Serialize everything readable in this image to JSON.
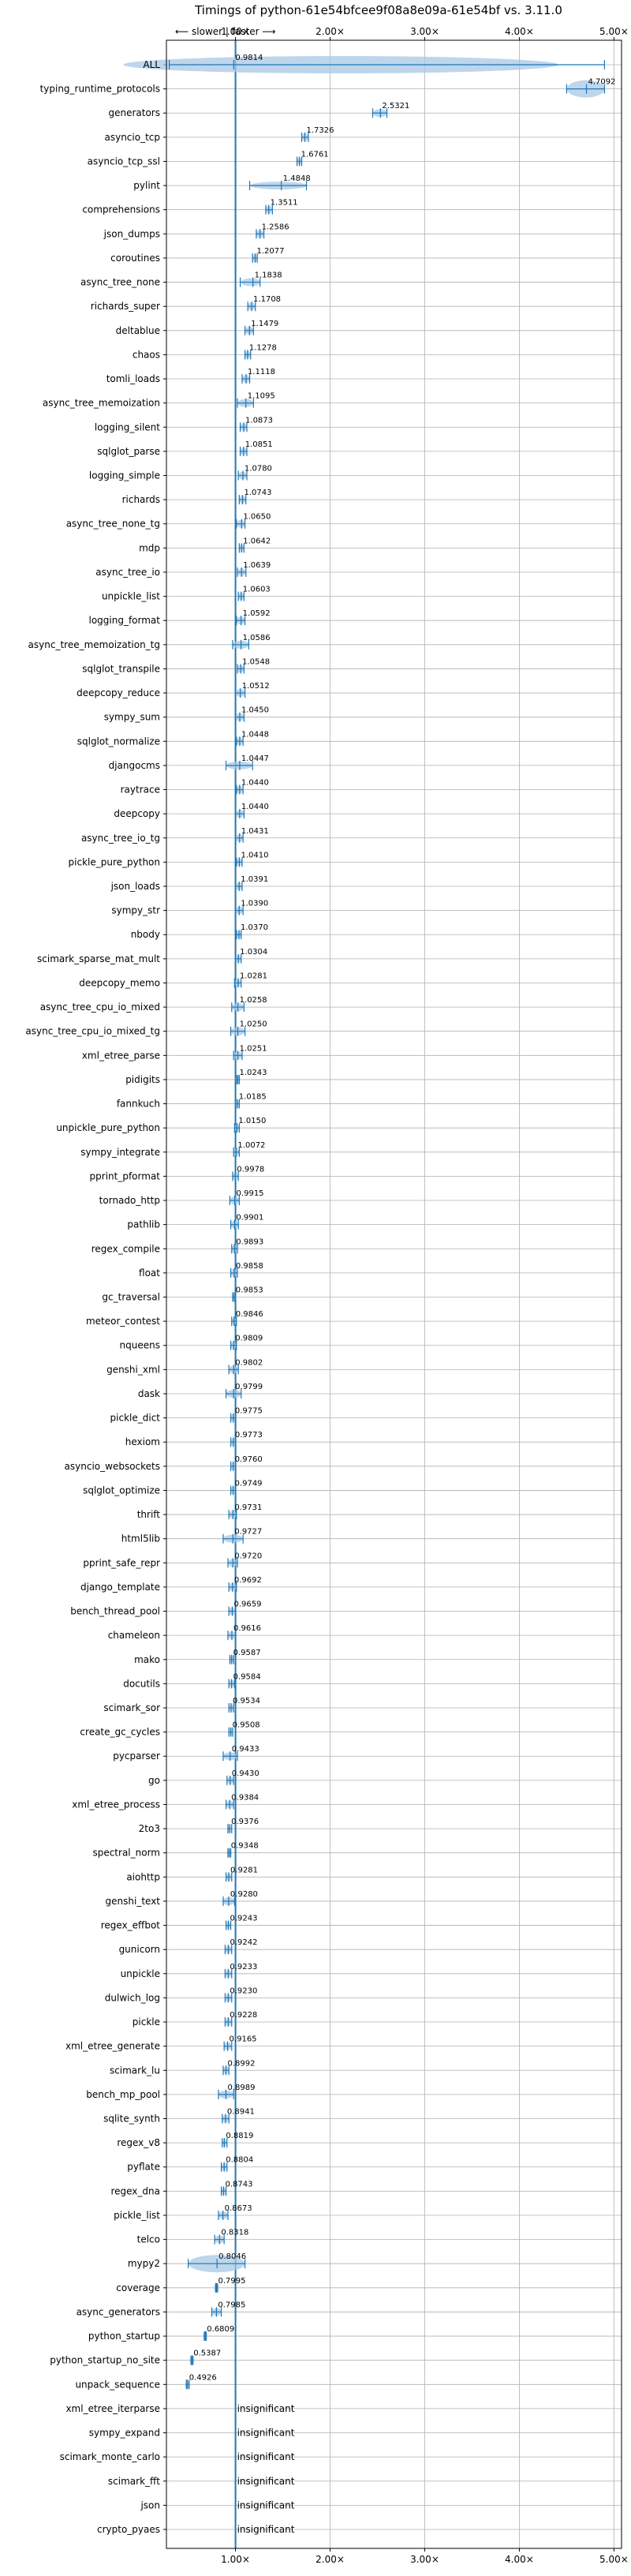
{
  "chart_data": {
    "type": "violin-scatter",
    "title": "Timings of python-61e54bfcee9f08a8e09a-61e54bf vs. 3.11.0",
    "direction_label": "⟵ slower | faster ⟶",
    "xlabel": "",
    "ylabel": "",
    "xlim": [
      0.27,
      5.08
    ],
    "x_ticks": [
      {
        "value": 1.0,
        "label": "1.00×"
      },
      {
        "value": 2.0,
        "label": "2.00×"
      },
      {
        "value": 3.0,
        "label": "3.00×"
      },
      {
        "value": 4.0,
        "label": "4.00×"
      },
      {
        "value": 5.0,
        "label": "5.00×"
      }
    ],
    "baseline": 1.0,
    "grid": true,
    "colors": {
      "violin": "#a8c8e6",
      "line": "#1f77b4",
      "baseline": "#1f77b4",
      "grid": "#b0b0b0"
    },
    "benchmarks": [
      {
        "name": "ALL",
        "value": 0.9814,
        "label": "0.9814",
        "min": 0.3,
        "max": 4.9
      },
      {
        "name": "typing_runtime_protocols",
        "value": 4.7092,
        "label": "4.7092",
        "min": 4.5,
        "max": 4.9
      },
      {
        "name": "generators",
        "value": 2.5321,
        "label": "2.5321",
        "min": 2.45,
        "max": 2.6
      },
      {
        "name": "asyncio_tcp",
        "value": 1.7326,
        "label": "1.7326",
        "min": 1.7,
        "max": 1.77
      },
      {
        "name": "asyncio_tcp_ssl",
        "value": 1.6761,
        "label": "1.6761",
        "min": 1.65,
        "max": 1.7
      },
      {
        "name": "pylint",
        "value": 1.4848,
        "label": "1.4848",
        "min": 1.15,
        "max": 1.75
      },
      {
        "name": "comprehensions",
        "value": 1.3511,
        "label": "1.3511",
        "min": 1.32,
        "max": 1.39
      },
      {
        "name": "json_dumps",
        "value": 1.2586,
        "label": "1.2586",
        "min": 1.22,
        "max": 1.3
      },
      {
        "name": "coroutines",
        "value": 1.2077,
        "label": "1.2077",
        "min": 1.18,
        "max": 1.23
      },
      {
        "name": "async_tree_none",
        "value": 1.1838,
        "label": "1.1838",
        "min": 1.05,
        "max": 1.26
      },
      {
        "name": "richards_super",
        "value": 1.1708,
        "label": "1.1708",
        "min": 1.13,
        "max": 1.21
      },
      {
        "name": "deltablue",
        "value": 1.1479,
        "label": "1.1479",
        "min": 1.1,
        "max": 1.19
      },
      {
        "name": "chaos",
        "value": 1.1278,
        "label": "1.1278",
        "min": 1.1,
        "max": 1.16
      },
      {
        "name": "tomli_loads",
        "value": 1.1118,
        "label": "1.1118",
        "min": 1.07,
        "max": 1.15
      },
      {
        "name": "async_tree_memoization",
        "value": 1.1095,
        "label": "1.1095",
        "min": 1.02,
        "max": 1.19
      },
      {
        "name": "logging_silent",
        "value": 1.0873,
        "label": "1.0873",
        "min": 1.05,
        "max": 1.12
      },
      {
        "name": "sqlglot_parse",
        "value": 1.0851,
        "label": "1.0851",
        "min": 1.05,
        "max": 1.12
      },
      {
        "name": "logging_simple",
        "value": 1.078,
        "label": "1.0780",
        "min": 1.03,
        "max": 1.12
      },
      {
        "name": "richards",
        "value": 1.0743,
        "label": "1.0743",
        "min": 1.04,
        "max": 1.11
      },
      {
        "name": "async_tree_none_tg",
        "value": 1.065,
        "label": "1.0650",
        "min": 1.01,
        "max": 1.1
      },
      {
        "name": "mdp",
        "value": 1.0642,
        "label": "1.0642",
        "min": 1.04,
        "max": 1.09
      },
      {
        "name": "async_tree_io",
        "value": 1.0639,
        "label": "1.0639",
        "min": 1.02,
        "max": 1.11
      },
      {
        "name": "unpickle_list",
        "value": 1.0603,
        "label": "1.0603",
        "min": 1.03,
        "max": 1.09
      },
      {
        "name": "logging_format",
        "value": 1.0592,
        "label": "1.0592",
        "min": 1.01,
        "max": 1.1
      },
      {
        "name": "async_tree_memoization_tg",
        "value": 1.0586,
        "label": "1.0586",
        "min": 0.97,
        "max": 1.14
      },
      {
        "name": "sqlglot_transpile",
        "value": 1.0548,
        "label": "1.0548",
        "min": 1.02,
        "max": 1.09
      },
      {
        "name": "deepcopy_reduce",
        "value": 1.0512,
        "label": "1.0512",
        "min": 1.0,
        "max": 1.1
      },
      {
        "name": "sympy_sum",
        "value": 1.045,
        "label": "1.0450",
        "min": 1.0,
        "max": 1.09
      },
      {
        "name": "sqlglot_normalize",
        "value": 1.0448,
        "label": "1.0448",
        "min": 1.01,
        "max": 1.08
      },
      {
        "name": "djangocms",
        "value": 1.0447,
        "label": "1.0447",
        "min": 0.9,
        "max": 1.18
      },
      {
        "name": "raytrace",
        "value": 1.044,
        "label": "1.0440",
        "min": 1.01,
        "max": 1.08
      },
      {
        "name": "deepcopy",
        "value": 1.044,
        "label": "1.0440",
        "min": 1.0,
        "max": 1.09
      },
      {
        "name": "async_tree_io_tg",
        "value": 1.0431,
        "label": "1.0431",
        "min": 1.0,
        "max": 1.08
      },
      {
        "name": "pickle_pure_python",
        "value": 1.041,
        "label": "1.0410",
        "min": 1.01,
        "max": 1.07
      },
      {
        "name": "json_loads",
        "value": 1.0391,
        "label": "1.0391",
        "min": 1.0,
        "max": 1.07
      },
      {
        "name": "sympy_str",
        "value": 1.039,
        "label": "1.0390",
        "min": 1.0,
        "max": 1.08
      },
      {
        "name": "nbody",
        "value": 1.037,
        "label": "1.0370",
        "min": 1.01,
        "max": 1.06
      },
      {
        "name": "scimark_sparse_mat_mult",
        "value": 1.0304,
        "label": "1.0304",
        "min": 1.0,
        "max": 1.06
      },
      {
        "name": "deepcopy_memo",
        "value": 1.0281,
        "label": "1.0281",
        "min": 0.99,
        "max": 1.06
      },
      {
        "name": "async_tree_cpu_io_mixed",
        "value": 1.0258,
        "label": "1.0258",
        "min": 0.96,
        "max": 1.09
      },
      {
        "name": "async_tree_cpu_io_mixed_tg",
        "value": 1.025,
        "label": "1.0250",
        "min": 0.95,
        "max": 1.1
      },
      {
        "name": "xml_etree_parse",
        "value": 1.0251,
        "label": "1.0251",
        "min": 0.98,
        "max": 1.07
      },
      {
        "name": "pidigits",
        "value": 1.0243,
        "label": "1.0243",
        "min": 1.01,
        "max": 1.04
      },
      {
        "name": "fannkuch",
        "value": 1.0185,
        "label": "1.0185",
        "min": 1.0,
        "max": 1.04
      },
      {
        "name": "unpickle_pure_python",
        "value": 1.015,
        "label": "1.0150",
        "min": 0.99,
        "max": 1.04
      },
      {
        "name": "sympy_integrate",
        "value": 1.0072,
        "label": "1.0072",
        "min": 0.98,
        "max": 1.04
      },
      {
        "name": "pprint_pformat",
        "value": 0.9978,
        "label": "0.9978",
        "min": 0.97,
        "max": 1.03
      },
      {
        "name": "tornado_http",
        "value": 0.9915,
        "label": "0.9915",
        "min": 0.94,
        "max": 1.04
      },
      {
        "name": "pathlib",
        "value": 0.9901,
        "label": "0.9901",
        "min": 0.95,
        "max": 1.03
      },
      {
        "name": "regex_compile",
        "value": 0.9893,
        "label": "0.9893",
        "min": 0.96,
        "max": 1.02
      },
      {
        "name": "float",
        "value": 0.9858,
        "label": "0.9858",
        "min": 0.95,
        "max": 1.02
      },
      {
        "name": "gc_traversal",
        "value": 0.9853,
        "label": "0.9853",
        "min": 0.97,
        "max": 1.0
      },
      {
        "name": "meteor_contest",
        "value": 0.9846,
        "label": "0.9846",
        "min": 0.96,
        "max": 1.01
      },
      {
        "name": "nqueens",
        "value": 0.9809,
        "label": "0.9809",
        "min": 0.95,
        "max": 1.01
      },
      {
        "name": "genshi_xml",
        "value": 0.9802,
        "label": "0.9802",
        "min": 0.93,
        "max": 1.03
      },
      {
        "name": "dask",
        "value": 0.9799,
        "label": "0.9799",
        "min": 0.9,
        "max": 1.06
      },
      {
        "name": "pickle_dict",
        "value": 0.9775,
        "label": "0.9775",
        "min": 0.95,
        "max": 1.0
      },
      {
        "name": "hexiom",
        "value": 0.9773,
        "label": "0.9773",
        "min": 0.95,
        "max": 1.0
      },
      {
        "name": "asyncio_websockets",
        "value": 0.976,
        "label": "0.9760",
        "min": 0.95,
        "max": 1.0
      },
      {
        "name": "sqlglot_optimize",
        "value": 0.9749,
        "label": "0.9749",
        "min": 0.95,
        "max": 1.0
      },
      {
        "name": "thrift",
        "value": 0.9731,
        "label": "0.9731",
        "min": 0.93,
        "max": 1.01
      },
      {
        "name": "html5lib",
        "value": 0.9727,
        "label": "0.9727",
        "min": 0.87,
        "max": 1.08
      },
      {
        "name": "pprint_safe_repr",
        "value": 0.972,
        "label": "0.9720",
        "min": 0.92,
        "max": 1.02
      },
      {
        "name": "django_template",
        "value": 0.9692,
        "label": "0.9692",
        "min": 0.93,
        "max": 1.01
      },
      {
        "name": "bench_thread_pool",
        "value": 0.9659,
        "label": "0.9659",
        "min": 0.93,
        "max": 1.0
      },
      {
        "name": "chameleon",
        "value": 0.9616,
        "label": "0.9616",
        "min": 0.92,
        "max": 1.0
      },
      {
        "name": "mako",
        "value": 0.9587,
        "label": "0.9587",
        "min": 0.94,
        "max": 0.98
      },
      {
        "name": "docutils",
        "value": 0.9584,
        "label": "0.9584",
        "min": 0.93,
        "max": 0.99
      },
      {
        "name": "scimark_sor",
        "value": 0.9534,
        "label": "0.9534",
        "min": 0.93,
        "max": 0.98
      },
      {
        "name": "create_gc_cycles",
        "value": 0.9508,
        "label": "0.9508",
        "min": 0.93,
        "max": 0.97
      },
      {
        "name": "pycparser",
        "value": 0.9433,
        "label": "0.9433",
        "min": 0.87,
        "max": 1.02
      },
      {
        "name": "go",
        "value": 0.943,
        "label": "0.9430",
        "min": 0.91,
        "max": 0.98
      },
      {
        "name": "xml_etree_process",
        "value": 0.9384,
        "label": "0.9384",
        "min": 0.9,
        "max": 0.98
      },
      {
        "name": "2to3",
        "value": 0.9376,
        "label": "0.9376",
        "min": 0.92,
        "max": 0.96
      },
      {
        "name": "spectral_norm",
        "value": 0.9348,
        "label": "0.9348",
        "min": 0.92,
        "max": 0.95
      },
      {
        "name": "aiohttp",
        "value": 0.9281,
        "label": "0.9281",
        "min": 0.9,
        "max": 0.96
      },
      {
        "name": "genshi_text",
        "value": 0.928,
        "label": "0.9280",
        "min": 0.87,
        "max": 0.99
      },
      {
        "name": "regex_effbot",
        "value": 0.9243,
        "label": "0.9243",
        "min": 0.9,
        "max": 0.95
      },
      {
        "name": "gunicorn",
        "value": 0.9242,
        "label": "0.9242",
        "min": 0.89,
        "max": 0.96
      },
      {
        "name": "unpickle",
        "value": 0.9233,
        "label": "0.9233",
        "min": 0.89,
        "max": 0.96
      },
      {
        "name": "dulwich_log",
        "value": 0.923,
        "label": "0.9230",
        "min": 0.89,
        "max": 0.96
      },
      {
        "name": "pickle",
        "value": 0.9228,
        "label": "0.9228",
        "min": 0.89,
        "max": 0.96
      },
      {
        "name": "xml_etree_generate",
        "value": 0.9165,
        "label": "0.9165",
        "min": 0.88,
        "max": 0.96
      },
      {
        "name": "scimark_lu",
        "value": 0.8992,
        "label": "0.8992",
        "min": 0.87,
        "max": 0.93
      },
      {
        "name": "bench_mp_pool",
        "value": 0.8989,
        "label": "0.8989",
        "min": 0.82,
        "max": 0.98
      },
      {
        "name": "sqlite_synth",
        "value": 0.8941,
        "label": "0.8941",
        "min": 0.86,
        "max": 0.93
      },
      {
        "name": "regex_v8",
        "value": 0.8819,
        "label": "0.8819",
        "min": 0.86,
        "max": 0.91
      },
      {
        "name": "pyflate",
        "value": 0.8804,
        "label": "0.8804",
        "min": 0.85,
        "max": 0.91
      },
      {
        "name": "regex_dna",
        "value": 0.8743,
        "label": "0.8743",
        "min": 0.85,
        "max": 0.9
      },
      {
        "name": "pickle_list",
        "value": 0.8673,
        "label": "0.8673",
        "min": 0.82,
        "max": 0.92
      },
      {
        "name": "telco",
        "value": 0.8318,
        "label": "0.8318",
        "min": 0.78,
        "max": 0.88
      },
      {
        "name": "mypy2",
        "value": 0.8046,
        "label": "0.8046",
        "min": 0.5,
        "max": 1.1
      },
      {
        "name": "coverage",
        "value": 0.7995,
        "label": "0.7995",
        "min": 0.79,
        "max": 0.81
      },
      {
        "name": "async_generators",
        "value": 0.7985,
        "label": "0.7985",
        "min": 0.75,
        "max": 0.85
      },
      {
        "name": "python_startup",
        "value": 0.6809,
        "label": "0.6809",
        "min": 0.67,
        "max": 0.69
      },
      {
        "name": "python_startup_no_site",
        "value": 0.5387,
        "label": "0.5387",
        "min": 0.53,
        "max": 0.55
      },
      {
        "name": "unpack_sequence",
        "value": 0.4926,
        "label": "0.4926",
        "min": 0.48,
        "max": 0.51
      },
      {
        "name": "xml_etree_iterparse",
        "value": null,
        "label": "insignificant"
      },
      {
        "name": "sympy_expand",
        "value": null,
        "label": "insignificant"
      },
      {
        "name": "scimark_monte_carlo",
        "value": null,
        "label": "insignificant"
      },
      {
        "name": "scimark_fft",
        "value": null,
        "label": "insignificant"
      },
      {
        "name": "json",
        "value": null,
        "label": "insignificant"
      },
      {
        "name": "crypto_pyaes",
        "value": null,
        "label": "insignificant"
      }
    ]
  }
}
